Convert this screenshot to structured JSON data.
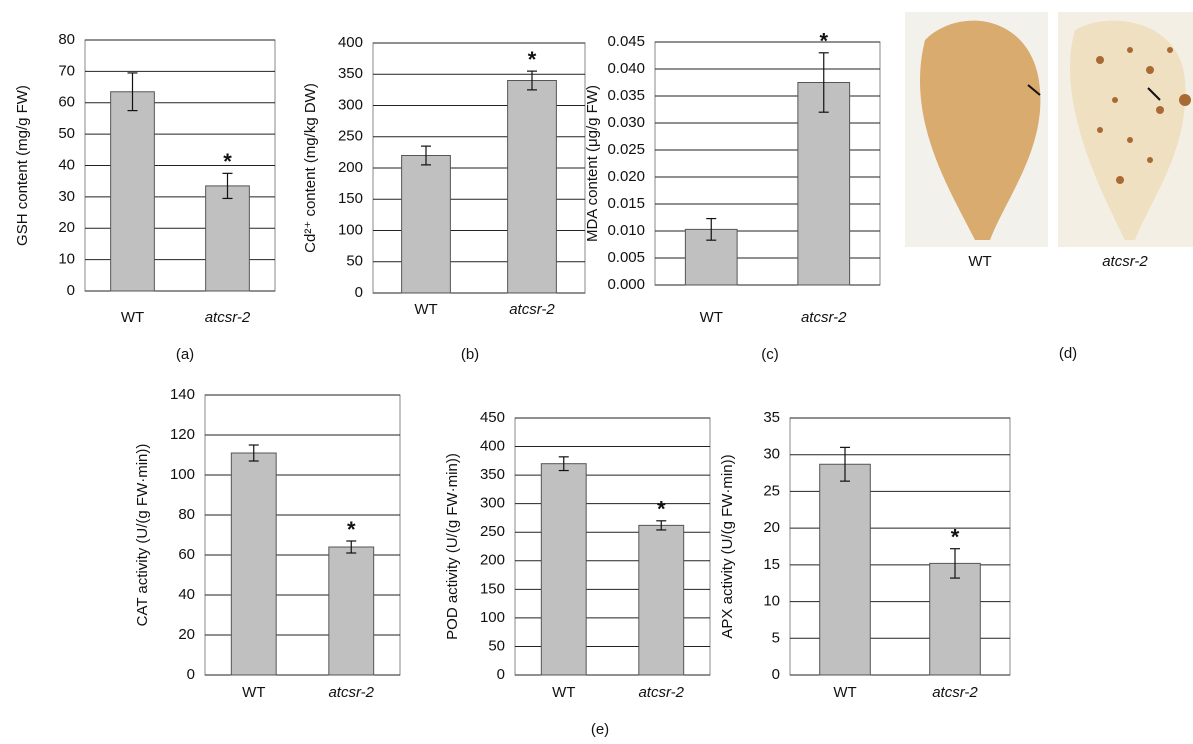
{
  "chart_data": [
    {
      "type": "bar",
      "panel_label": "(a)",
      "ylabel": "GSH content (mg/g FW)",
      "categories": [
        "WT",
        "atcsr-2"
      ],
      "values": [
        63.5,
        33.5
      ],
      "errors": [
        6,
        4
      ],
      "color": "#c0c0c0",
      "ylim": [
        0,
        80
      ],
      "yticks": [
        0,
        10,
        20,
        30,
        40,
        50,
        60,
        70,
        80
      ],
      "grid": true,
      "annotations": [
        {
          "index": 1,
          "text": "*"
        }
      ]
    },
    {
      "type": "bar",
      "panel_label": "(b)",
      "ylabel": "Cd²⁺ content (mg/kg DW)",
      "categories": [
        "WT",
        "atcsr-2"
      ],
      "values": [
        220,
        340
      ],
      "errors": [
        15,
        15
      ],
      "color": "#c0c0c0",
      "ylim": [
        0,
        400
      ],
      "yticks": [
        0,
        50,
        100,
        150,
        200,
        250,
        300,
        350,
        400
      ],
      "grid": true,
      "annotations": [
        {
          "index": 1,
          "text": "*"
        }
      ]
    },
    {
      "type": "bar",
      "panel_label": "(c)",
      "ylabel": "MDA content (μg/g FW)",
      "categories": [
        "WT",
        "atcsr-2"
      ],
      "values": [
        0.0103,
        0.0375
      ],
      "errors": [
        0.002,
        0.0055
      ],
      "color": "#c0c0c0",
      "ylim": [
        0,
        0.045
      ],
      "yticks": [
        {
          "value": 0,
          "label": "0.000"
        },
        {
          "value": 0.005,
          "label": "0.005"
        },
        {
          "value": 0.01,
          "label": "0.010"
        },
        {
          "value": 0.015,
          "label": "0.015"
        },
        {
          "value": 0.02,
          "label": "0.020"
        },
        {
          "value": 0.025,
          "label": "0.025"
        },
        {
          "value": 0.03,
          "label": "0.030"
        },
        {
          "value": 0.035,
          "label": "0.035"
        },
        {
          "value": 0.04,
          "label": "0.040"
        },
        {
          "value": 0.045,
          "label": "0.045"
        }
      ],
      "grid": true,
      "annotations": [
        {
          "index": 1,
          "text": "*"
        }
      ]
    },
    {
      "type": "bar",
      "ylabel": "CAT activity (U/(g FW·min))",
      "categories": [
        "WT",
        "atcsr-2"
      ],
      "values": [
        111,
        64
      ],
      "errors": [
        4,
        3
      ],
      "color": "#c0c0c0",
      "ylim": [
        0,
        140
      ],
      "yticks": [
        0,
        20,
        40,
        60,
        80,
        100,
        120,
        140
      ],
      "grid": true,
      "annotations": [
        {
          "index": 1,
          "text": "*"
        }
      ]
    },
    {
      "type": "bar",
      "ylabel": "POD activity (U/(g FW·min))",
      "categories": [
        "WT",
        "atcsr-2"
      ],
      "values": [
        370,
        262
      ],
      "errors": [
        12,
        8
      ],
      "color": "#c0c0c0",
      "ylim": [
        0,
        450
      ],
      "yticks": [
        0,
        50,
        100,
        150,
        200,
        250,
        300,
        350,
        400,
        450
      ],
      "grid": true,
      "annotations": [
        {
          "index": 1,
          "text": "*"
        }
      ]
    },
    {
      "type": "bar",
      "ylabel": "APX activity (U/(g FW·min))",
      "categories": [
        "WT",
        "atcsr-2"
      ],
      "values": [
        28.7,
        15.2
      ],
      "errors": [
        2.3,
        2
      ],
      "color": "#c0c0c0",
      "ylim": [
        0,
        35
      ],
      "yticks": [
        0,
        5,
        10,
        15,
        20,
        25,
        30,
        35
      ],
      "grid": true,
      "annotations": [
        {
          "index": 1,
          "text": "*"
        }
      ]
    }
  ],
  "image_panel": {
    "labels": [
      "WT",
      "atcsr-2"
    ],
    "panel_label": "(d)"
  },
  "group_label": "(e)"
}
